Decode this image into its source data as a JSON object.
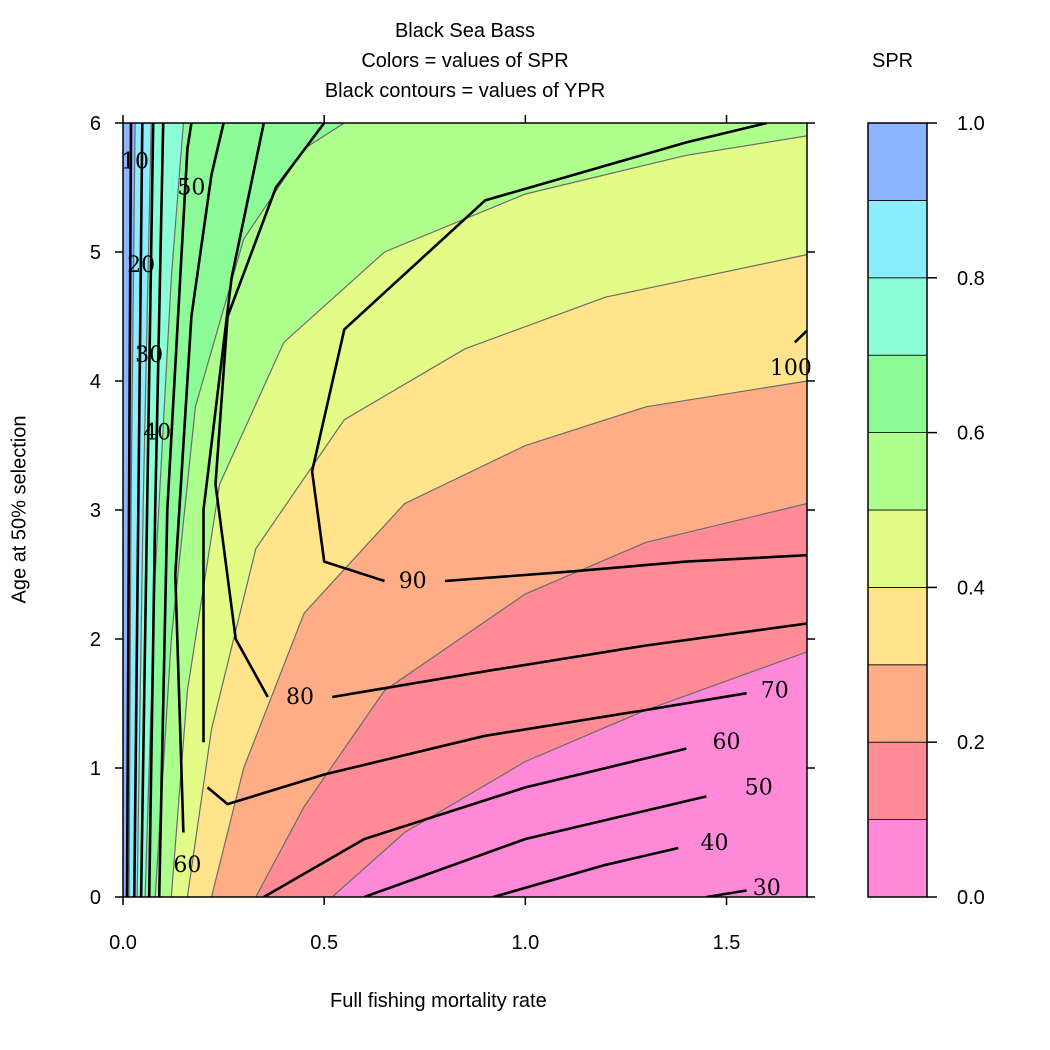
{
  "chart": {
    "title": "Black Sea Bass",
    "subtitle1": "Colors = values of SPR",
    "subtitle2": "Black contours = values of YPR",
    "xlabel": "Full fishing mortality rate",
    "ylabel": "Age at 50% selection",
    "legend_title": "SPR"
  },
  "chart_data": {
    "type": "heatmap",
    "title": "Black Sea Bass",
    "subtitle": [
      "Colors = values of SPR",
      "Black contours = values of YPR"
    ],
    "xlabel": "Full fishing mortality rate",
    "ylabel": "Age at 50% selection",
    "xlim": [
      0,
      1.7
    ],
    "ylim": [
      0,
      6
    ],
    "xticks": [
      0.0,
      0.5,
      1.0,
      1.5
    ],
    "xtick_labels": [
      "0.0",
      "0.5",
      "1.0",
      "1.5"
    ],
    "yticks": [
      0,
      1,
      2,
      3,
      4,
      5,
      6
    ],
    "ytick_labels": [
      "0",
      "1",
      "2",
      "3",
      "4",
      "5",
      "6"
    ],
    "color_variable": "SPR",
    "color_levels": [
      0.0,
      0.1,
      0.2,
      0.3,
      0.4,
      0.5,
      0.6,
      0.7,
      0.8,
      0.9,
      1.0
    ],
    "colorbar_ticks": [
      0.0,
      0.2,
      0.4,
      0.6,
      0.8,
      1.0
    ],
    "colorbar_tick_labels": [
      "0.0",
      "0.2",
      "0.4",
      "0.6",
      "0.8",
      "1.0"
    ],
    "colors": [
      "#ff88d8",
      "#ff8b97",
      "#ffad87",
      "#ffe48b",
      "#e3fc87",
      "#aeff8d",
      "#8cfa97",
      "#8cffd9",
      "#8cedff",
      "#8cb4ff"
    ],
    "spr_boundaries": [
      {
        "level": 0.1,
        "points": [
          [
            0.52,
            0
          ],
          [
            0.7,
            0.5
          ],
          [
            1.0,
            1.05
          ],
          [
            1.3,
            1.45
          ],
          [
            1.7,
            1.9
          ]
        ]
      },
      {
        "level": 0.2,
        "points": [
          [
            0.33,
            0
          ],
          [
            0.45,
            0.7
          ],
          [
            0.65,
            1.6
          ],
          [
            1.0,
            2.35
          ],
          [
            1.3,
            2.75
          ],
          [
            1.7,
            3.05
          ]
        ]
      },
      {
        "level": 0.3,
        "points": [
          [
            0.22,
            0
          ],
          [
            0.3,
            1.0
          ],
          [
            0.45,
            2.2
          ],
          [
            0.7,
            3.05
          ],
          [
            1.0,
            3.5
          ],
          [
            1.3,
            3.8
          ],
          [
            1.7,
            4.0
          ]
        ]
      },
      {
        "level": 0.4,
        "points": [
          [
            0.16,
            0
          ],
          [
            0.22,
            1.3
          ],
          [
            0.33,
            2.7
          ],
          [
            0.55,
            3.7
          ],
          [
            0.85,
            4.25
          ],
          [
            1.2,
            4.65
          ],
          [
            1.7,
            4.98
          ]
        ]
      },
      {
        "level": 0.5,
        "points": [
          [
            0.12,
            0
          ],
          [
            0.16,
            1.6
          ],
          [
            0.24,
            3.2
          ],
          [
            0.4,
            4.3
          ],
          [
            0.65,
            5.0
          ],
          [
            1.0,
            5.45
          ],
          [
            1.4,
            5.75
          ],
          [
            1.7,
            5.9
          ]
        ]
      },
      {
        "level": 0.6,
        "points": [
          [
            0.08,
            0
          ],
          [
            0.12,
            2.0
          ],
          [
            0.18,
            3.8
          ],
          [
            0.3,
            5.1
          ],
          [
            0.45,
            5.8
          ],
          [
            0.55,
            6.0
          ]
        ]
      },
      {
        "level": 0.7,
        "points": [
          [
            0.055,
            0
          ],
          [
            0.08,
            2.5
          ],
          [
            0.12,
            4.8
          ],
          [
            0.15,
            6.0
          ]
        ]
      },
      {
        "level": 0.8,
        "points": [
          [
            0.035,
            0
          ],
          [
            0.05,
            3.0
          ],
          [
            0.07,
            6.0
          ]
        ]
      },
      {
        "level": 0.9,
        "points": [
          [
            0.015,
            0
          ],
          [
            0.02,
            3.0
          ],
          [
            0.03,
            6.0
          ]
        ]
      }
    ],
    "ypr_contours": [
      {
        "level": 10,
        "label": "10",
        "points": [
          [
            0.01,
            0
          ],
          [
            0.015,
            3.0
          ],
          [
            0.02,
            6.0
          ]
        ],
        "label_at": [
          0.03,
          5.7
        ]
      },
      {
        "level": 20,
        "label": "20",
        "points": [
          [
            0.028,
            0
          ],
          [
            0.038,
            3.0
          ],
          [
            0.048,
            6.0
          ]
        ],
        "label_at": [
          0.045,
          4.9
        ]
      },
      {
        "level": 30,
        "label": "30",
        "points": [
          [
            0.045,
            0
          ],
          [
            0.06,
            3.0
          ],
          [
            0.075,
            6.0
          ]
        ],
        "label_at": [
          0.065,
          4.2
        ]
      },
      {
        "level": 40,
        "label": "40",
        "points": [
          [
            0.065,
            0
          ],
          [
            0.08,
            3.0
          ],
          [
            0.1,
            6.0
          ]
        ],
        "label_at": [
          0.085,
          3.6
        ]
      },
      {
        "level": 50,
        "label": "50",
        "points": [
          [
            0.09,
            0
          ],
          [
            0.11,
            3.0
          ],
          [
            0.16,
            5.8
          ],
          [
            0.17,
            6.0
          ]
        ],
        "label_at": [
          0.17,
          5.5
        ]
      },
      {
        "level": 60,
        "label": "60",
        "points": [
          [
            0.15,
            0.5
          ],
          [
            0.13,
            2.5
          ],
          [
            0.17,
            4.5
          ],
          [
            0.22,
            5.6
          ],
          [
            0.25,
            6.0
          ]
        ],
        "label_at": [
          0.16,
          0.25
        ]
      },
      {
        "level": 70,
        "label": "70",
        "points": [
          [
            0.2,
            1.2
          ],
          [
            0.2,
            3.0
          ],
          [
            0.27,
            4.8
          ],
          [
            0.35,
            6.0
          ]
        ]
      },
      {
        "level": 80,
        "label": "80",
        "points": [
          [
            0.36,
            1.55
          ],
          [
            0.28,
            2.0
          ],
          [
            0.23,
            3.2
          ],
          [
            0.26,
            4.5
          ],
          [
            0.38,
            5.5
          ],
          [
            0.5,
            6.0
          ]
        ],
        "label_at": [
          0.44,
          1.55
        ]
      },
      {
        "level": 90,
        "label": "90",
        "points": [
          [
            0.65,
            2.45
          ],
          [
            0.5,
            2.6
          ],
          [
            0.47,
            3.3
          ],
          [
            0.55,
            4.4
          ],
          [
            0.9,
            5.4
          ],
          [
            1.4,
            5.85
          ],
          [
            1.6,
            6.0
          ]
        ],
        "label_at": [
          0.72,
          2.45
        ]
      },
      {
        "level": 100,
        "label": "100",
        "points": [
          [
            1.72,
            4.45
          ],
          [
            1.67,
            4.3
          ]
        ],
        "label_at": [
          1.66,
          4.1
        ]
      },
      {
        "level": 90.5,
        "label": "",
        "points": [
          [
            0.8,
            2.45
          ],
          [
            1.1,
            2.52
          ],
          [
            1.4,
            2.6
          ],
          [
            1.7,
            2.65
          ]
        ]
      },
      {
        "level": 80.5,
        "label": "",
        "points": [
          [
            0.52,
            1.55
          ],
          [
            0.9,
            1.75
          ],
          [
            1.3,
            1.95
          ],
          [
            1.7,
            2.12
          ]
        ]
      },
      {
        "level": 70.5,
        "label": "70",
        "points": [
          [
            0.21,
            0.85
          ],
          [
            0.26,
            0.72
          ],
          [
            0.5,
            0.95
          ],
          [
            0.9,
            1.25
          ],
          [
            1.3,
            1.45
          ],
          [
            1.55,
            1.58
          ]
        ],
        "label_at": [
          1.62,
          1.6
        ]
      },
      {
        "level": 60.5,
        "label": "60",
        "points": [
          [
            0.35,
            0
          ],
          [
            0.6,
            0.45
          ],
          [
            1.0,
            0.85
          ],
          [
            1.4,
            1.15
          ]
        ],
        "label_at": [
          1.5,
          1.2
        ]
      },
      {
        "level": 50.5,
        "label": "50",
        "points": [
          [
            0.6,
            0
          ],
          [
            1.0,
            0.45
          ],
          [
            1.45,
            0.78
          ]
        ],
        "label_at": [
          1.58,
          0.85
        ]
      },
      {
        "level": 40.5,
        "label": "40",
        "points": [
          [
            0.92,
            0
          ],
          [
            1.2,
            0.25
          ],
          [
            1.38,
            0.38
          ]
        ],
        "label_at": [
          1.47,
          0.42
        ]
      },
      {
        "level": 30.5,
        "label": "30",
        "points": [
          [
            1.45,
            0
          ],
          [
            1.55,
            0.05
          ]
        ],
        "label_at": [
          1.6,
          0.07
        ]
      }
    ],
    "grid": false,
    "legend_position": "right"
  }
}
